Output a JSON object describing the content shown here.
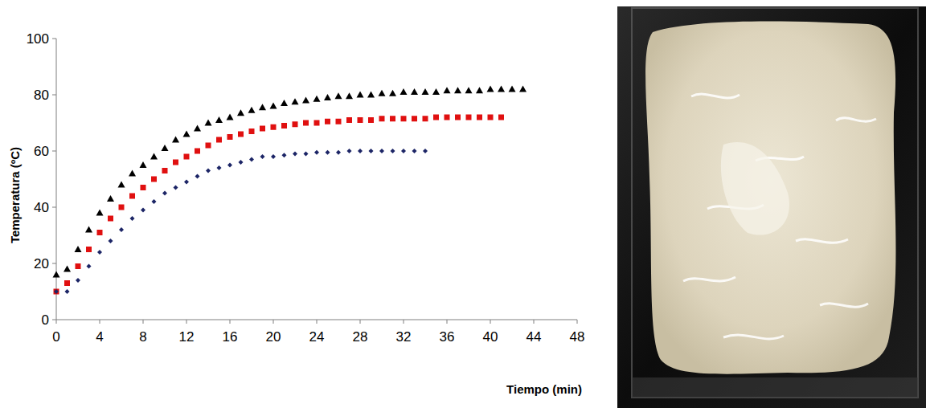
{
  "chart_data": {
    "type": "scatter",
    "x_label": "Tiempo (min)",
    "y_label": "Temperatura (ºC)",
    "xlim": [
      0,
      48
    ],
    "xticks": [
      0,
      4,
      8,
      12,
      16,
      20,
      24,
      28,
      32,
      36,
      40,
      44,
      48
    ],
    "ylim": [
      0,
      100
    ],
    "yticks": [
      0,
      20,
      40,
      60,
      80,
      100
    ],
    "grid": false,
    "series": [
      {
        "color": "#000000",
        "marker": "triangle",
        "x": [
          0,
          1,
          2,
          3,
          4,
          5,
          6,
          7,
          8,
          9,
          10,
          11,
          12,
          13,
          14,
          15,
          16,
          17,
          18,
          19,
          20,
          21,
          22,
          23,
          24,
          25,
          26,
          27,
          28,
          29,
          30,
          31,
          32,
          33,
          34,
          35,
          36,
          37,
          38,
          39,
          40,
          41,
          42,
          43
        ],
        "values": [
          16,
          18,
          25,
          32,
          38,
          43,
          48,
          52,
          55,
          58,
          61,
          64,
          66,
          68,
          70,
          71,
          72,
          73.5,
          74.5,
          75.5,
          76,
          77,
          77.5,
          78,
          78.5,
          79,
          79.5,
          79.5,
          80,
          80,
          80.5,
          80.5,
          81,
          81,
          81,
          81,
          81.5,
          81.5,
          81.5,
          81.5,
          82,
          82,
          82,
          82
        ]
      },
      {
        "color": "#e01010",
        "marker": "square",
        "x": [
          0,
          1,
          2,
          3,
          4,
          5,
          6,
          7,
          8,
          9,
          10,
          11,
          12,
          13,
          14,
          15,
          16,
          17,
          18,
          19,
          20,
          21,
          22,
          23,
          24,
          25,
          26,
          27,
          28,
          29,
          30,
          31,
          32,
          33,
          34,
          35,
          36,
          37,
          38,
          39,
          40,
          41
        ],
        "values": [
          10,
          13,
          19,
          25,
          31,
          36,
          40,
          44,
          47,
          50,
          53,
          56,
          58,
          60,
          62,
          64,
          65,
          66,
          67,
          68,
          68.5,
          69,
          69.5,
          70,
          70,
          70.5,
          70.5,
          71,
          71,
          71,
          71.5,
          71.5,
          71.5,
          71.5,
          71.5,
          72,
          72,
          72,
          72,
          72,
          72,
          72
        ]
      },
      {
        "color": "#1c2566",
        "marker": "diamond",
        "x": [
          0,
          1,
          2,
          3,
          4,
          5,
          6,
          7,
          8,
          9,
          10,
          11,
          12,
          13,
          14,
          15,
          16,
          17,
          18,
          19,
          20,
          21,
          22,
          23,
          24,
          25,
          26,
          27,
          28,
          29,
          30,
          31,
          32,
          33,
          34
        ],
        "values": [
          10,
          10,
          14,
          19,
          24,
          28,
          32,
          36,
          39,
          42,
          45,
          47,
          49,
          51,
          53,
          54,
          55,
          56,
          57,
          58,
          58,
          58.5,
          59,
          59,
          59.5,
          59.5,
          59.5,
          60,
          60,
          60,
          60,
          60,
          60,
          60,
          60
        ]
      }
    ]
  }
}
